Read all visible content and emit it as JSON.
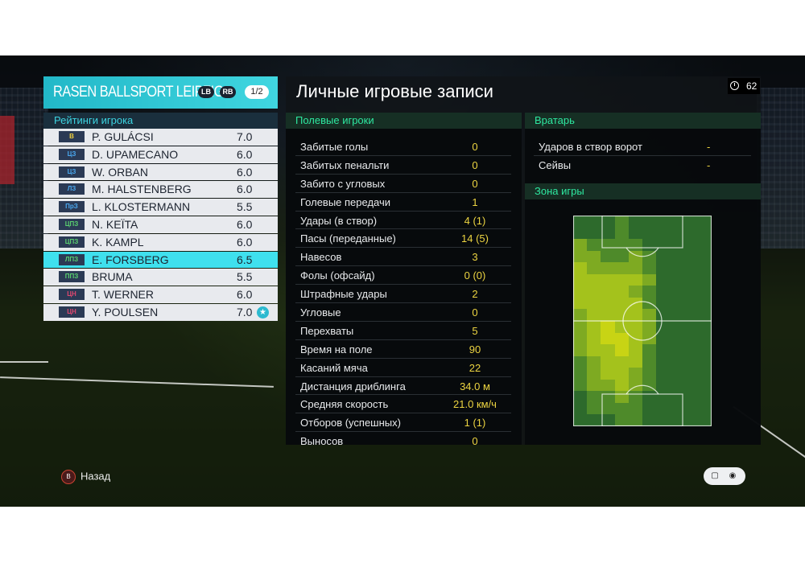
{
  "team": {
    "name": "RASEN BALLSPORT LEIPZIG",
    "badges": [
      "LB",
      "RB"
    ],
    "page": "1/2"
  },
  "ratings_title": "Рейтинги игрока",
  "players": [
    {
      "pos": "В",
      "pos_color": "#f0d040",
      "name": "P. GULÁCSI",
      "rating": "7.0",
      "selected": false,
      "star": false
    },
    {
      "pos": "ЦЗ",
      "pos_color": "#4aa8f0",
      "name": "D. UPAMECANO",
      "rating": "6.0",
      "selected": false,
      "star": false
    },
    {
      "pos": "ЦЗ",
      "pos_color": "#4aa8f0",
      "name": "W. ORBAN",
      "rating": "6.0",
      "selected": false,
      "star": false
    },
    {
      "pos": "ЛЗ",
      "pos_color": "#4aa8f0",
      "name": "M. HALSTENBERG",
      "rating": "6.0",
      "selected": false,
      "star": false
    },
    {
      "pos": "ПрЗ",
      "pos_color": "#4aa8f0",
      "name": "L. KLOSTERMANN",
      "rating": "5.5",
      "selected": false,
      "star": false
    },
    {
      "pos": "ЦПЗ",
      "pos_color": "#5ad070",
      "name": "N. KEÏTA",
      "rating": "6.0",
      "selected": false,
      "star": false
    },
    {
      "pos": "ЦПЗ",
      "pos_color": "#5ad070",
      "name": "K. KAMPL",
      "rating": "6.0",
      "selected": false,
      "star": false
    },
    {
      "pos": "ЛПЗ",
      "pos_color": "#5ad070",
      "name": "E. FORSBERG",
      "rating": "6.5",
      "selected": true,
      "star": false
    },
    {
      "pos": "ППЗ",
      "pos_color": "#5ad070",
      "name": "BRUMA",
      "rating": "5.5",
      "selected": false,
      "star": false
    },
    {
      "pos": "ЦН",
      "pos_color": "#e04870",
      "name": "T. WERNER",
      "rating": "6.0",
      "selected": false,
      "star": false
    },
    {
      "pos": "ЦН",
      "pos_color": "#e04870",
      "name": "Y. POULSEN",
      "rating": "7.0",
      "selected": false,
      "star": true
    }
  ],
  "main_title": "Личные игровые записи",
  "timer": "62",
  "field_players": {
    "header": "Полевые игроки",
    "stats": [
      {
        "label": "Забитые голы",
        "value": "0"
      },
      {
        "label": "Забитых пенальти",
        "value": "0"
      },
      {
        "label": "Забито с угловых",
        "value": "0"
      },
      {
        "label": "Голевые передачи",
        "value": "1"
      },
      {
        "label": "Удары (в створ)",
        "value": "4 (1)"
      },
      {
        "label": "Пасы (переданные)",
        "value": "14 (5)"
      },
      {
        "label": "Навесов",
        "value": "3"
      },
      {
        "label": "Фолы (офсайд)",
        "value": "0 (0)"
      },
      {
        "label": "Штрафные удары",
        "value": "2"
      },
      {
        "label": "Угловые",
        "value": "0"
      },
      {
        "label": "Перехваты",
        "value": "5"
      },
      {
        "label": "Время на поле",
        "value": "90"
      },
      {
        "label": "Касаний мяча",
        "value": "22"
      },
      {
        "label": "Дистанция дриблинга",
        "value": "34.0 м"
      },
      {
        "label": "Средняя скорость",
        "value": "21.0 км/ч"
      },
      {
        "label": "Отборов (успешных)",
        "value": "1 (1)"
      },
      {
        "label": "Выносов",
        "value": "0"
      }
    ]
  },
  "goalkeeper": {
    "header": "Вратарь",
    "stats": [
      {
        "label": "Ударов в створ ворот",
        "value": "-"
      },
      {
        "label": "Сейвы",
        "value": "-"
      }
    ]
  },
  "zone": {
    "header": "Зона игры",
    "heatmap": [
      [
        0,
        0,
        0,
        1,
        0,
        0,
        0,
        0,
        0,
        0
      ],
      [
        0,
        0,
        0,
        1,
        0,
        0,
        0,
        0,
        0,
        0
      ],
      [
        2,
        1,
        1,
        1,
        1,
        0,
        0,
        0,
        0,
        0
      ],
      [
        2,
        2,
        1,
        1,
        2,
        1,
        0,
        0,
        0,
        0
      ],
      [
        3,
        2,
        2,
        2,
        2,
        1,
        0,
        0,
        0,
        0
      ],
      [
        3,
        3,
        3,
        3,
        3,
        2,
        0,
        0,
        0,
        0
      ],
      [
        3,
        3,
        3,
        3,
        2,
        1,
        0,
        0,
        0,
        0
      ],
      [
        3,
        3,
        3,
        3,
        3,
        1,
        0,
        0,
        0,
        0
      ],
      [
        2,
        3,
        3,
        3,
        3,
        2,
        0,
        0,
        0,
        0
      ],
      [
        2,
        3,
        4,
        3,
        3,
        2,
        0,
        0,
        0,
        0
      ],
      [
        2,
        3,
        4,
        4,
        3,
        2,
        0,
        0,
        0,
        0
      ],
      [
        2,
        3,
        3,
        4,
        3,
        1,
        0,
        0,
        0,
        0
      ],
      [
        1,
        2,
        3,
        3,
        3,
        1,
        0,
        0,
        0,
        0
      ],
      [
        1,
        2,
        3,
        3,
        2,
        1,
        0,
        0,
        0,
        0
      ],
      [
        1,
        2,
        2,
        3,
        2,
        1,
        0,
        0,
        0,
        0
      ],
      [
        0,
        1,
        1,
        2,
        1,
        0,
        0,
        0,
        0,
        0
      ],
      [
        0,
        1,
        1,
        1,
        1,
        0,
        0,
        0,
        0,
        0
      ],
      [
        0,
        0,
        0,
        1,
        1,
        0,
        0,
        0,
        0,
        0
      ]
    ],
    "heat_colors": [
      "#2d6a2c",
      "#4e8a2a",
      "#7eaa22",
      "#a4c21c",
      "#c8d414"
    ]
  },
  "back_label": "Назад",
  "back_icon": "B",
  "footer_icons": [
    "chat-icon",
    "rs-icon"
  ]
}
